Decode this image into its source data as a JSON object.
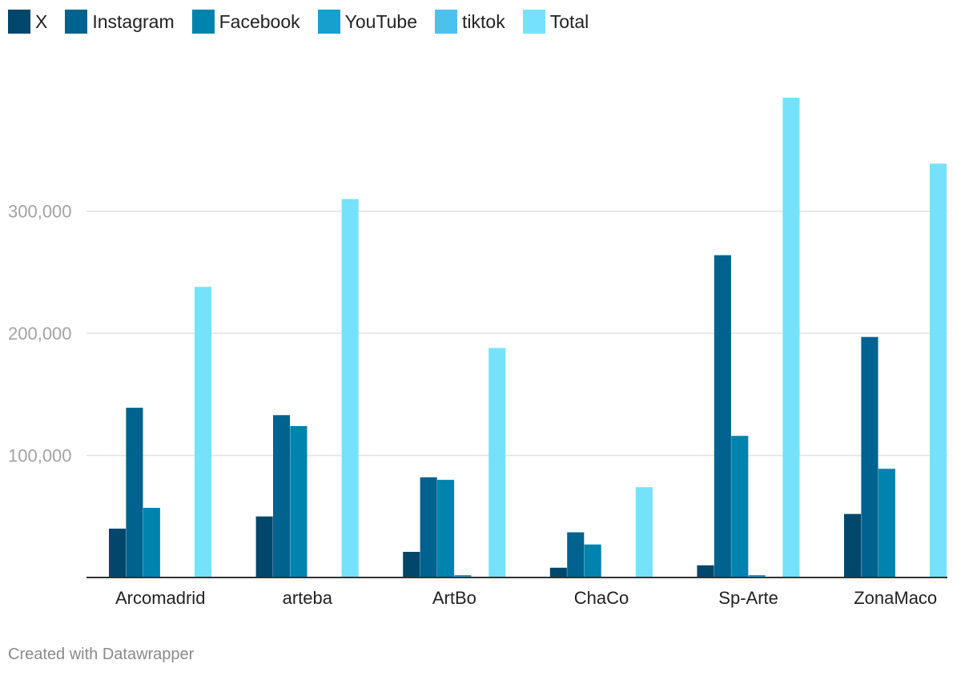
{
  "chart_data": {
    "type": "bar",
    "categories": [
      "Arcomadrid",
      "arteba",
      "ArtBo",
      "ChaCo",
      "Sp-Arte",
      "ZonaMaco"
    ],
    "series": [
      {
        "name": "X",
        "color": "#00476b",
        "values": [
          40000,
          50000,
          21000,
          8000,
          10000,
          52000
        ]
      },
      {
        "name": "Instagram",
        "color": "#00628e",
        "values": [
          139000,
          133000,
          82000,
          37000,
          264000,
          197000
        ]
      },
      {
        "name": "Facebook",
        "color": "#0083ad",
        "values": [
          57000,
          124000,
          80000,
          27000,
          116000,
          89000
        ]
      },
      {
        "name": "YouTube",
        "color": "#17a0cd",
        "values": [
          0,
          0,
          2000,
          0,
          2000,
          0
        ]
      },
      {
        "name": "tiktok",
        "color": "#4cc1ec",
        "values": [
          0,
          0,
          0,
          0,
          0,
          0
        ]
      },
      {
        "name": "Total",
        "color": "#76e1fb",
        "values": [
          238000,
          310000,
          188000,
          74000,
          393000,
          339000
        ]
      }
    ],
    "y_ticks": [
      {
        "value": 100000,
        "label": "100,000"
      },
      {
        "value": 200000,
        "label": "200,000"
      },
      {
        "value": 300000,
        "label": "300,000"
      }
    ],
    "ylim": [
      0,
      393000
    ],
    "grid": true,
    "legend_position": "top-left"
  },
  "footer": {
    "credit": "Created with Datawrapper"
  }
}
